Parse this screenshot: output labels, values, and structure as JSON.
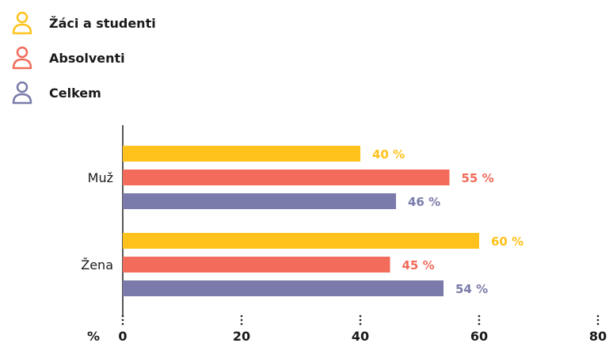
{
  "colors": {
    "students": "#FFC21C",
    "graduates": "#F26B5B",
    "total": "#7A7BAA"
  },
  "legend": [
    {
      "label": "Žáci a studenti",
      "color": "#FFC21C",
      "icon": "person-icon"
    },
    {
      "label": "Absolventi",
      "color": "#F26B5B",
      "icon": "person-icon"
    },
    {
      "label": "Celkem",
      "color": "#7A7BAA",
      "icon": "person-icon"
    }
  ],
  "chart_data": {
    "type": "bar",
    "orientation": "horizontal",
    "categories": [
      "Muž",
      "Žena"
    ],
    "series": [
      {
        "name": "Žáci a studenti",
        "values": [
          40,
          60
        ],
        "color": "#FFC21C"
      },
      {
        "name": "Absolventi",
        "values": [
          55,
          45
        ],
        "color": "#F26B5B"
      },
      {
        "name": "Celkem",
        "values": [
          46,
          54
        ],
        "color": "#7A7BAA"
      }
    ],
    "value_labels": [
      [
        "40 %",
        "60 %"
      ],
      [
        "55 %",
        "45 %"
      ],
      [
        "46 %",
        "54 %"
      ]
    ],
    "xlabel": "%",
    "xlim": [
      0,
      80
    ],
    "xticks": [
      0,
      20,
      40,
      60,
      80
    ],
    "grid": false,
    "legend_position": "top-left"
  }
}
